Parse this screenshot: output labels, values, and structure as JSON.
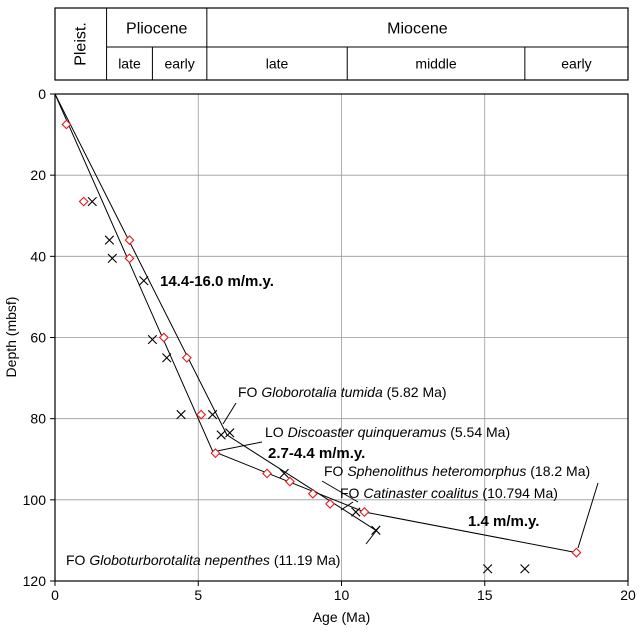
{
  "chart_data": {
    "type": "scatter",
    "xlabel": "Age (Ma)",
    "ylabel": "Depth (mbsf)",
    "xlim": [
      0,
      20
    ],
    "ylim": [
      0,
      120
    ],
    "y_inverted": true,
    "x_ticks": [
      "0",
      "5",
      "10",
      "15",
      "20"
    ],
    "y_ticks": [
      "0",
      "20",
      "40",
      "60",
      "80",
      "100",
      "120"
    ],
    "grid": true,
    "timescale": {
      "epochs": [
        {
          "name": "Pleist.",
          "start": 0,
          "end": 1.8
        },
        {
          "name": "Pliocene",
          "start": 1.8,
          "end": 5.3
        },
        {
          "name": "Miocene",
          "start": 5.3,
          "end": 20
        }
      ],
      "subepochs": [
        {
          "name": "late",
          "start": 1.8,
          "end": 3.4
        },
        {
          "name": "early",
          "start": 3.4,
          "end": 5.3
        },
        {
          "name": "late",
          "start": 5.3,
          "end": 10.2
        },
        {
          "name": "middle",
          "start": 10.2,
          "end": 16.4
        },
        {
          "name": "early",
          "start": 16.4,
          "end": 20
        }
      ]
    },
    "series": [
      {
        "marker": "diamond",
        "color": "#e31a1c",
        "points": [
          [
            0.4,
            7.5
          ],
          [
            1.0,
            26.5
          ],
          [
            2.6,
            36
          ],
          [
            2.6,
            40.5
          ],
          [
            3.8,
            60
          ],
          [
            4.6,
            65
          ],
          [
            5.1,
            79
          ],
          [
            5.6,
            88.5
          ],
          [
            7.4,
            93.5
          ],
          [
            8.2,
            95.5
          ],
          [
            9.0,
            98.5
          ],
          [
            9.6,
            101
          ],
          [
            10.8,
            103
          ],
          [
            18.2,
            113
          ]
        ]
      },
      {
        "marker": "x",
        "color": "#000000",
        "points": [
          [
            1.3,
            26.5
          ],
          [
            1.9,
            36
          ],
          [
            2.0,
            40.5
          ],
          [
            3.1,
            46
          ],
          [
            3.4,
            60.5
          ],
          [
            3.9,
            65
          ],
          [
            4.4,
            79
          ],
          [
            5.5,
            79
          ],
          [
            5.8,
            84
          ],
          [
            6.1,
            83.5
          ],
          [
            8.0,
            93.5
          ],
          [
            10.5,
            103
          ],
          [
            11.2,
            107.5
          ],
          [
            15.1,
            117
          ],
          [
            16.4,
            117
          ]
        ]
      }
    ],
    "lines": [
      {
        "points": [
          [
            0,
            0
          ],
          [
            6,
            84
          ],
          [
            11.2,
            107.5
          ]
        ]
      },
      {
        "points": [
          [
            0,
            0
          ],
          [
            5.5,
            88
          ],
          [
            10.8,
            103
          ],
          [
            18.2,
            113
          ]
        ]
      }
    ],
    "rates": [
      "14.4-16.0 m/m.y.",
      "2.7-4.4 m/m.y.",
      "1.4 m/m.y."
    ],
    "annotations": [
      {
        "prefix": "FO",
        "taxon": "Globorotalia tumida",
        "age": "(5.82 Ma)"
      },
      {
        "prefix": "LO",
        "taxon": "Discoaster quinqueramus",
        "age": "(5.54 Ma)"
      },
      {
        "prefix": "FO",
        "taxon": "Sphenolithus heteromorphus",
        "age": "(18.2 Ma)"
      },
      {
        "prefix": "FO",
        "taxon": "Catinaster coalitus",
        "age": "(10.794 Ma)"
      },
      {
        "prefix": "FO",
        "taxon": "Globoturborotalita nepenthes",
        "age": "(11.19 Ma)"
      }
    ]
  }
}
